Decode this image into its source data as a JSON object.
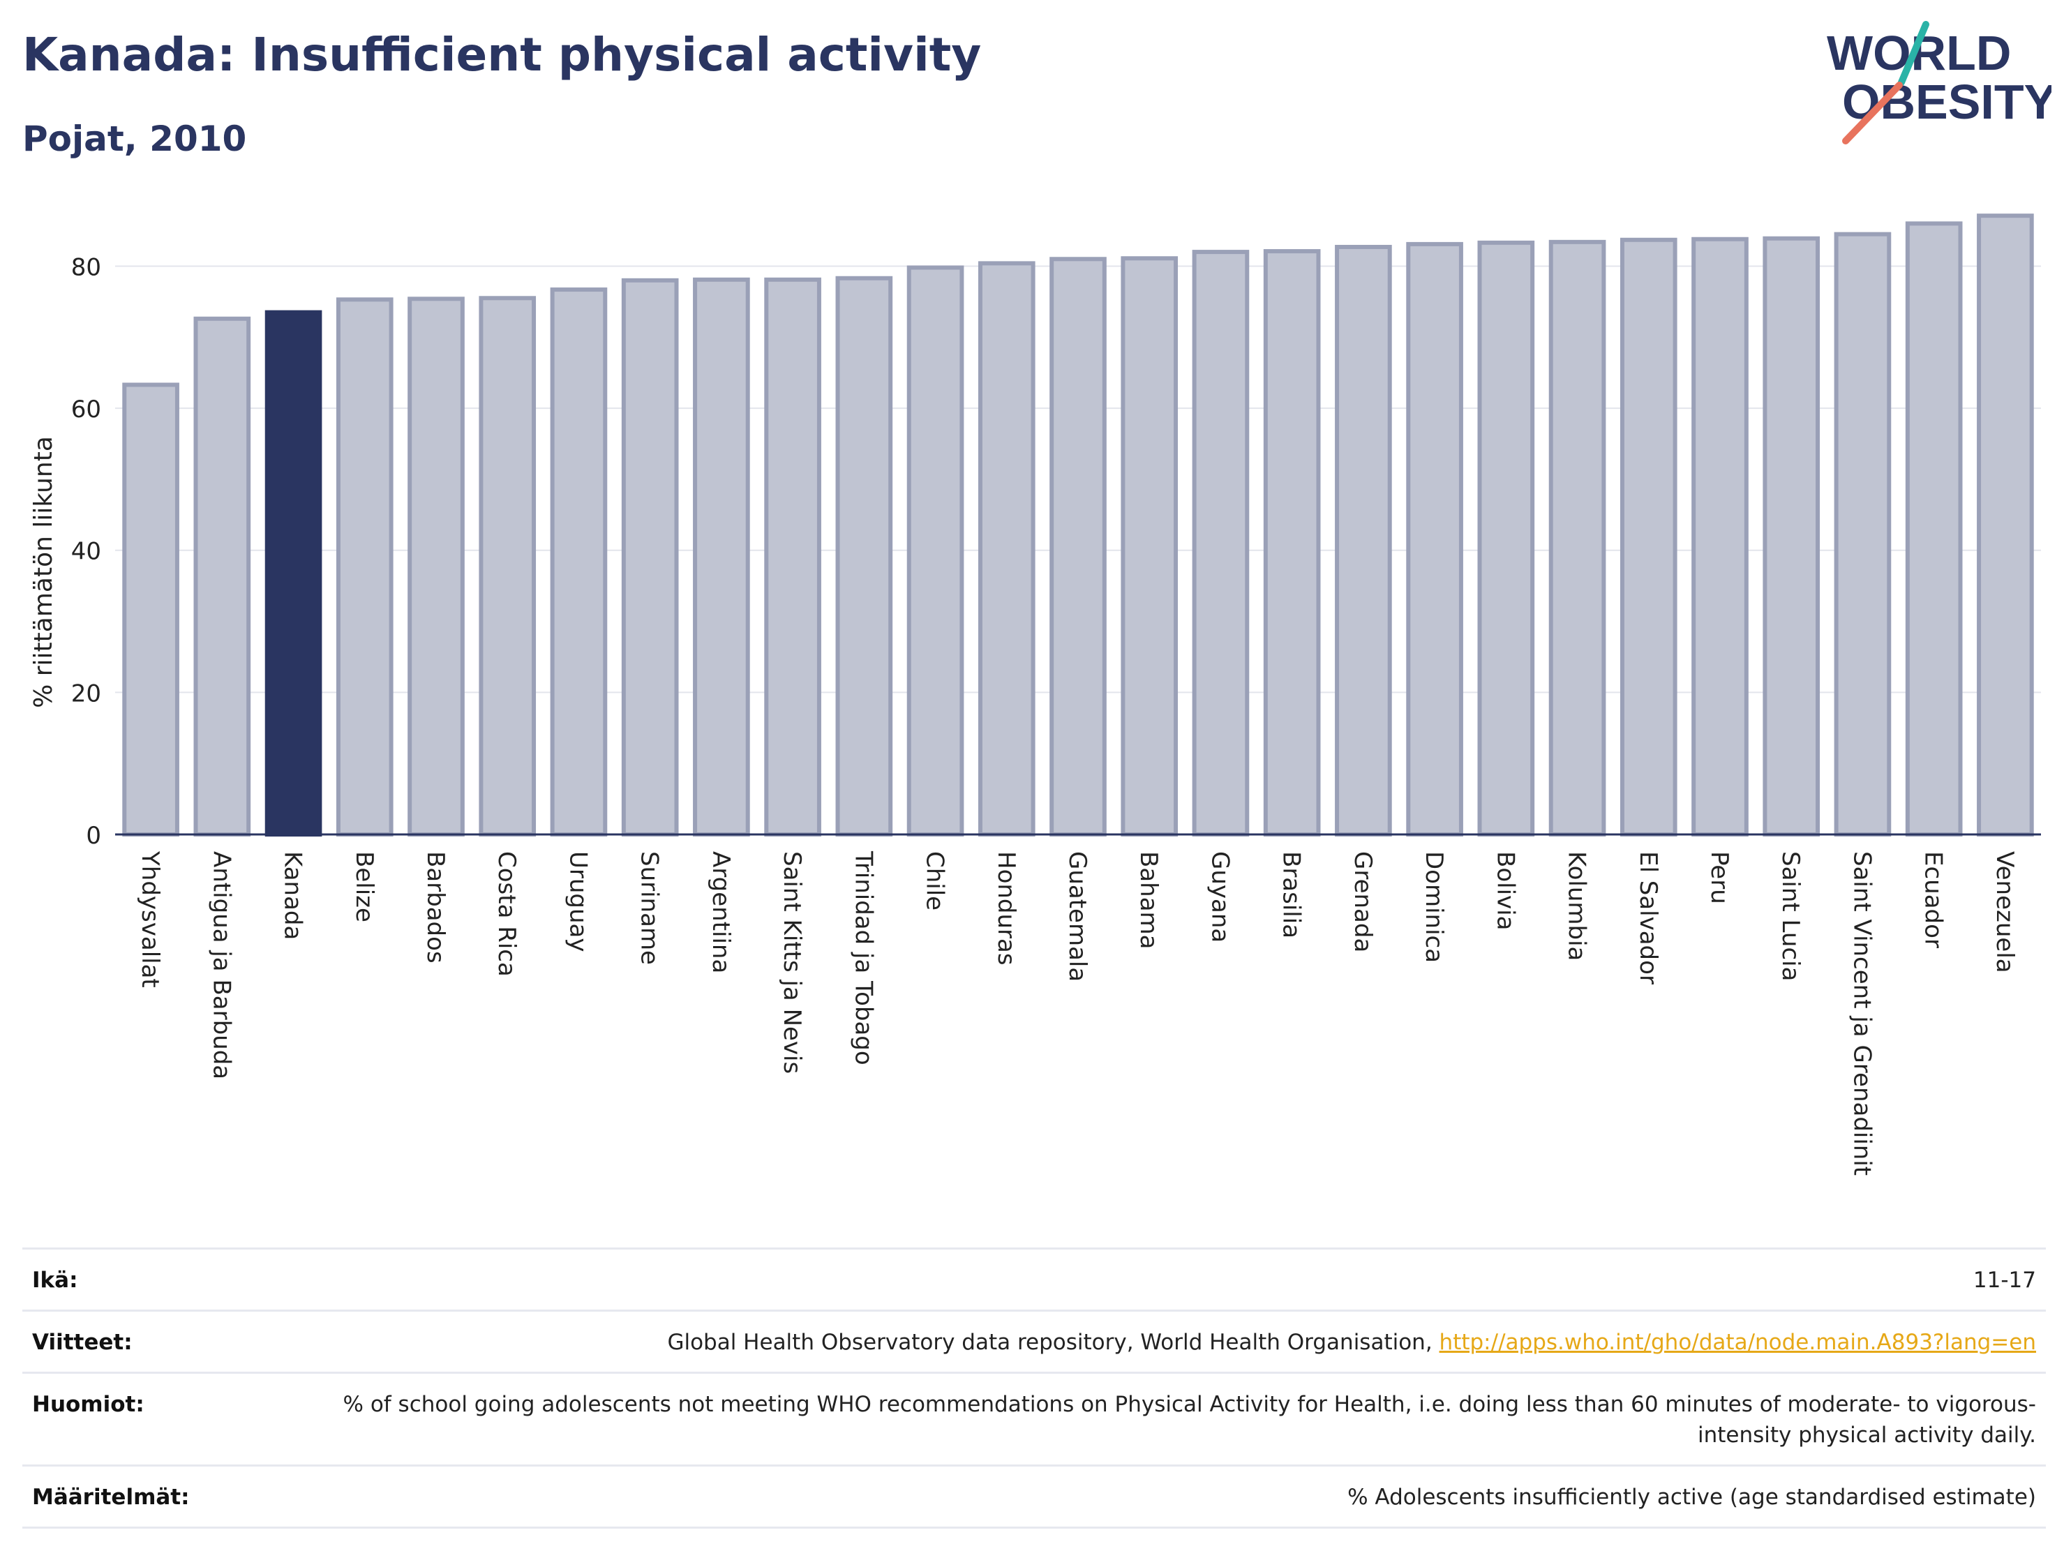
{
  "header": {
    "title": "Kanada: Insufficient physical activity",
    "subtitle": "Pojat, 2010"
  },
  "logo": {
    "line1": "WORLD",
    "line2": "OBESITY"
  },
  "colors": {
    "highlight": "#2a3561",
    "bar_fill": "#c0c4d2",
    "bar_stroke": "#9aa0b7",
    "title": "#2a3561",
    "logo_teal": "#2ab3a7",
    "logo_coral": "#e8735d",
    "link": "#e6a817"
  },
  "chart_data": {
    "type": "bar",
    "title": "Kanada: Insufficient physical activity",
    "subtitle": "Pojat, 2010",
    "xlabel": "",
    "ylabel": "% riittämätön liikunta",
    "ylim": [
      0,
      88
    ],
    "yticks": [
      0,
      20,
      40,
      60,
      80
    ],
    "grid": true,
    "highlight": "Kanada",
    "categories": [
      "Yhdysvallat",
      "Antigua ja Barbuda",
      "Kanada",
      "Belize",
      "Barbados",
      "Costa Rica",
      "Uruguay",
      "Suriname",
      "Argentiina",
      "Saint Kitts ja Nevis",
      "Trinidad ja Tobago",
      "Chile",
      "Honduras",
      "Guatemala",
      "Bahama",
      "Guyana",
      "Brasilia",
      "Grenada",
      "Dominica",
      "Bolivia",
      "Kolumbia",
      "El Salvador",
      "Peru",
      "Saint Lucia",
      "Saint Vincent ja Grenadiinit",
      "Ecuador",
      "Venezuela"
    ],
    "values": [
      63.3,
      72.6,
      73.5,
      75.3,
      75.4,
      75.5,
      76.7,
      78.0,
      78.1,
      78.1,
      78.3,
      79.8,
      80.4,
      81.0,
      81.1,
      82.0,
      82.1,
      82.7,
      83.1,
      83.3,
      83.4,
      83.7,
      83.8,
      83.9,
      84.5,
      86.0,
      87.1
    ]
  },
  "footer": {
    "rows": [
      {
        "label": "Ikä:",
        "value": "11-17"
      },
      {
        "label": "Viitteet:",
        "value": "Global Health Observatory data repository, World Health Organisation, ",
        "link": "http://apps.who.int/gho/data/node.main.A893?lang=en"
      },
      {
        "label": "Huomiot:",
        "value": "% of school going adolescents not meeting WHO recommendations on Physical Activity for Health, i.e. doing less than 60 minutes of moderate- to vigorous-intensity physical activity daily."
      },
      {
        "label": "Määritelmät:",
        "value": "% Adolescents insufficiently active (age standardised estimate)"
      }
    ]
  }
}
